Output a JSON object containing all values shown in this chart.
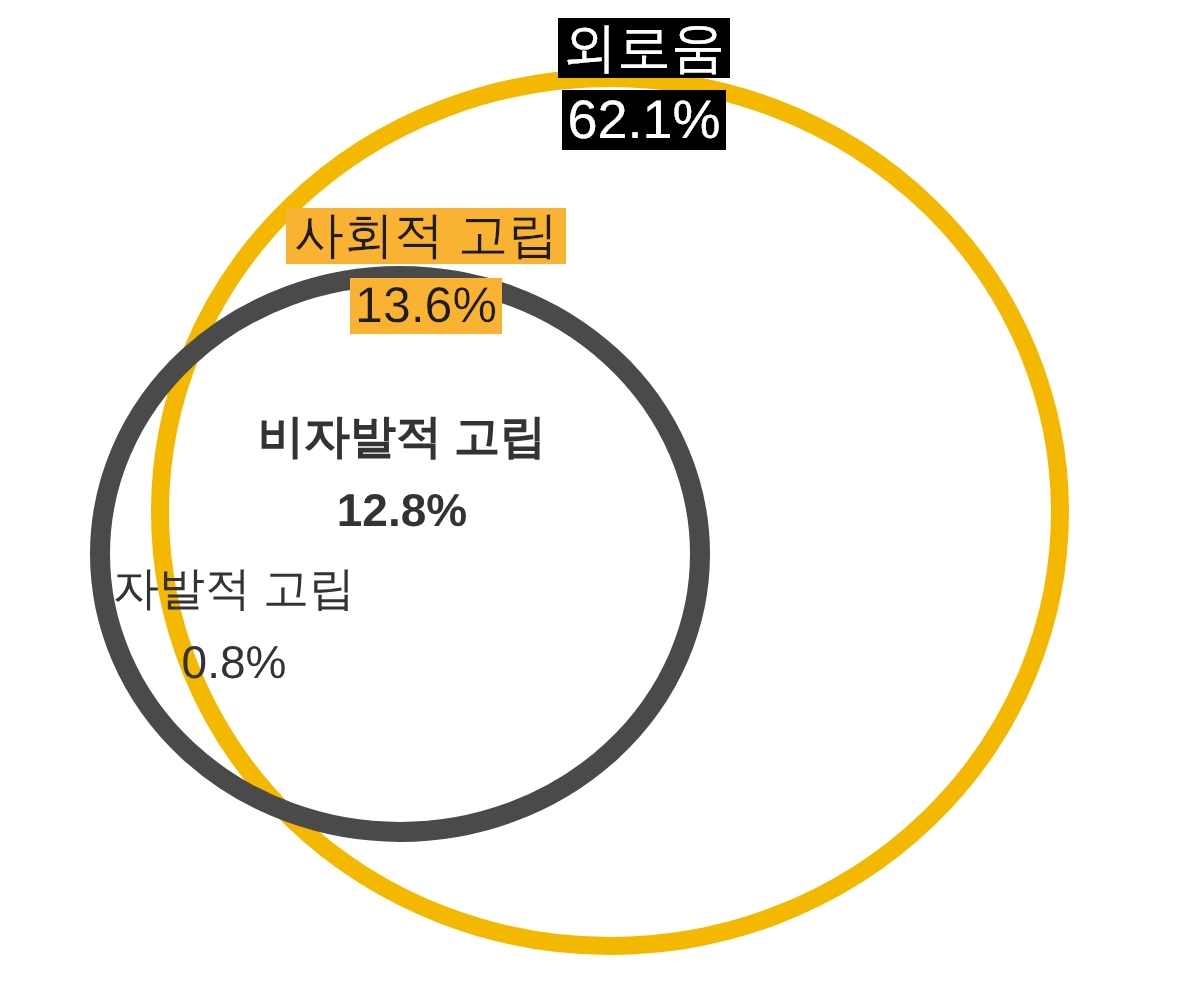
{
  "chart_data": {
    "type": "other",
    "categories": [
      "외로움",
      "사회적 고립",
      "비자발적 고립",
      "자발적 고립"
    ],
    "values": [
      62.1,
      13.6,
      12.8,
      0.8
    ],
    "value_labels": [
      "62.1%",
      "13.6%",
      "12.8%",
      "0.8%"
    ],
    "colors": [
      "#f5b800",
      "#4a4a4a",
      null,
      null
    ]
  }
}
